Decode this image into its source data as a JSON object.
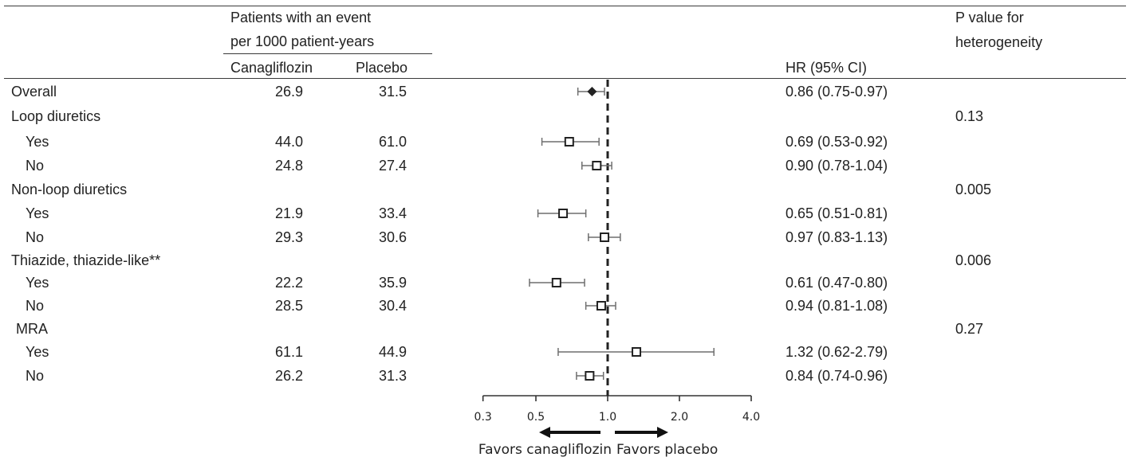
{
  "header": {
    "event_line1": "Patients with an event",
    "event_line2": "per 1000 patient-years",
    "col_cana": "Canagliflozin",
    "col_placebo": "Placebo",
    "col_hr": "HR (95% CI)",
    "col_p_line1": "P value for",
    "col_p_line2": "heterogeneity"
  },
  "rows": [
    {
      "label": "Overall",
      "cana": "26.9",
      "placebo": "31.5",
      "hr_text": "0.86 (0.75-0.97)",
      "p": ""
    },
    {
      "label": "Loop diuretics",
      "cana": "",
      "placebo": "",
      "hr_text": "",
      "p": "0.13"
    },
    {
      "label": "Yes",
      "cana": "44.0",
      "placebo": "61.0",
      "hr_text": "0.69 (0.53-0.92)",
      "p": ""
    },
    {
      "label": "No",
      "cana": "24.8",
      "placebo": "27.4",
      "hr_text": "0.90 (0.78-1.04)",
      "p": ""
    },
    {
      "label": "Non-loop diuretics",
      "cana": "",
      "placebo": "",
      "hr_text": "",
      "p": "0.005"
    },
    {
      "label": "Yes",
      "cana": "21.9",
      "placebo": "33.4",
      "hr_text": "0.65 (0.51-0.81)",
      "p": ""
    },
    {
      "label": "No",
      "cana": "29.3",
      "placebo": "30.6",
      "hr_text": "0.97 (0.83-1.13)",
      "p": ""
    },
    {
      "label": "Thiazide, thiazide-like**",
      "cana": "",
      "placebo": "",
      "hr_text": "",
      "p": "0.006"
    },
    {
      "label": "Yes",
      "cana": "22.2",
      "placebo": "35.9",
      "hr_text": "0.61 (0.47-0.80)",
      "p": ""
    },
    {
      "label": "No",
      "cana": "28.5",
      "placebo": "30.4",
      "hr_text": "0.94 (0.81-1.08)",
      "p": ""
    },
    {
      "label": "MRA",
      "cana": "",
      "placebo": "",
      "hr_text": "",
      "p": "0.27"
    },
    {
      "label": "Yes",
      "cana": "61.1",
      "placebo": "44.9",
      "hr_text": "1.32 (0.62-2.79)",
      "p": ""
    },
    {
      "label": "No",
      "cana": "26.2",
      "placebo": "31.3",
      "hr_text": "0.84 (0.74-0.96)",
      "p": ""
    }
  ],
  "chart_data": {
    "type": "forest",
    "x_scale": "log",
    "x_ticks": [
      0.3,
      0.5,
      1.0,
      2.0,
      4.0
    ],
    "x_tick_labels": [
      "0.3",
      "0.5",
      "1.0",
      "2.0",
      "4.0"
    ],
    "xlim": [
      0.3,
      4.0
    ],
    "reference_line": 1.0,
    "favors_left": "Favors canagliflozin",
    "favors_right": "Favors placebo",
    "estimates": [
      {
        "row": 0,
        "hr": 0.86,
        "lo": 0.75,
        "hi": 0.97,
        "marker": "diamond"
      },
      {
        "row": 2,
        "hr": 0.69,
        "lo": 0.53,
        "hi": 0.92,
        "marker": "square"
      },
      {
        "row": 3,
        "hr": 0.9,
        "lo": 0.78,
        "hi": 1.04,
        "marker": "square"
      },
      {
        "row": 5,
        "hr": 0.65,
        "lo": 0.51,
        "hi": 0.81,
        "marker": "square"
      },
      {
        "row": 6,
        "hr": 0.97,
        "lo": 0.83,
        "hi": 1.13,
        "marker": "square"
      },
      {
        "row": 8,
        "hr": 0.61,
        "lo": 0.47,
        "hi": 0.8,
        "marker": "square"
      },
      {
        "row": 9,
        "hr": 0.94,
        "lo": 0.81,
        "hi": 1.08,
        "marker": "square"
      },
      {
        "row": 11,
        "hr": 1.32,
        "lo": 0.62,
        "hi": 2.79,
        "marker": "square"
      },
      {
        "row": 12,
        "hr": 0.84,
        "lo": 0.74,
        "hi": 0.96,
        "marker": "square"
      }
    ]
  }
}
